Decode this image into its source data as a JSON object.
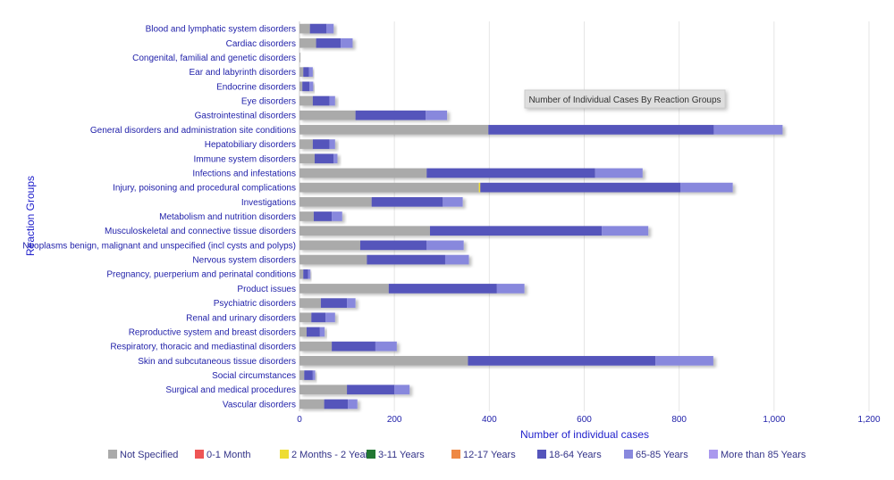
{
  "chart_data": {
    "type": "bar",
    "orientation": "horizontal",
    "stacked": true,
    "title": "Number of Individual Cases By Reaction Groups",
    "xlabel": "Number of individual cases",
    "ylabel": "Reaction Groups",
    "xlim": [
      0,
      1200
    ],
    "xticks": [
      0,
      200,
      400,
      600,
      800,
      1000,
      1200
    ],
    "xtick_labels": [
      "0",
      "200",
      "400",
      "600",
      "800",
      "1,000",
      "1,200"
    ],
    "grid": true,
    "legend_position": "bottom",
    "categories": [
      "Blood and lymphatic system disorders",
      "Cardiac disorders",
      "Congenital, familial and genetic disorders",
      "Ear and labyrinth disorders",
      "Endocrine disorders",
      "Eye disorders",
      "Gastrointestinal disorders",
      "General disorders and administration site conditions",
      "Hepatobiliary disorders",
      "Immune system disorders",
      "Infections and infestations",
      "Injury, poisoning and procedural complications",
      "Investigations",
      "Metabolism and nutrition disorders",
      "Musculoskeletal and connective tissue disorders",
      "Neoplasms benign, malignant and unspecified (incl cysts and polyps)",
      "Nervous system disorders",
      "Pregnancy, puerperium and perinatal conditions",
      "Product issues",
      "Psychiatric disorders",
      "Renal and urinary disorders",
      "Reproductive system and breast disorders",
      "Respiratory, thoracic and mediastinal disorders",
      "Skin and subcutaneous tissue disorders",
      "Social circumstances",
      "Surgical and medical procedures",
      "Vascular disorders"
    ],
    "series": [
      {
        "name": "Not Specified",
        "color": "#aaaaaa",
        "values": [
          22,
          35,
          2,
          8,
          6,
          28,
          118,
          398,
          28,
          32,
          268,
          378,
          152,
          30,
          275,
          128,
          142,
          8,
          188,
          45,
          25,
          15,
          68,
          355,
          10,
          100,
          52
        ]
      },
      {
        "name": "0-1 Month",
        "color": "#ee5555",
        "values": [
          0,
          0,
          0,
          0,
          0,
          0,
          0,
          0,
          0,
          0,
          0,
          0,
          0,
          0,
          0,
          0,
          0,
          0,
          0,
          0,
          0,
          0,
          0,
          0,
          0,
          0,
          0
        ]
      },
      {
        "name": "2 Months - 2 Years",
        "color": "#eedd33",
        "values": [
          0,
          0,
          0,
          0,
          0,
          0,
          0,
          0,
          0,
          0,
          0,
          3,
          0,
          0,
          0,
          0,
          0,
          0,
          0,
          0,
          0,
          0,
          0,
          0,
          0,
          0,
          0
        ]
      },
      {
        "name": "3-11 Years",
        "color": "#227733",
        "values": [
          0,
          0,
          0,
          0,
          0,
          0,
          0,
          0,
          0,
          0,
          0,
          0,
          0,
          0,
          0,
          0,
          0,
          0,
          0,
          0,
          0,
          0,
          0,
          0,
          0,
          0,
          0
        ]
      },
      {
        "name": "12-17 Years",
        "color": "#ee8844",
        "values": [
          0,
          0,
          0,
          0,
          0,
          0,
          0,
          0,
          0,
          0,
          0,
          0,
          0,
          0,
          0,
          0,
          0,
          0,
          0,
          0,
          0,
          0,
          0,
          0,
          0,
          0,
          0
        ]
      },
      {
        "name": "18-64 Years",
        "color": "#5555bb",
        "values": [
          35,
          52,
          0,
          12,
          15,
          35,
          148,
          475,
          35,
          40,
          355,
          422,
          150,
          38,
          362,
          140,
          165,
          10,
          228,
          55,
          30,
          28,
          92,
          395,
          18,
          100,
          50
        ]
      },
      {
        "name": "65-85 Years",
        "color": "#8888dd",
        "values": [
          15,
          25,
          0,
          8,
          8,
          12,
          45,
          145,
          12,
          8,
          100,
          110,
          42,
          22,
          98,
          78,
          50,
          5,
          58,
          18,
          20,
          10,
          45,
          122,
          5,
          32,
          20
        ]
      },
      {
        "name": "More than 85 Years",
        "color": "#aa99ee",
        "values": [
          0,
          0,
          0,
          0,
          0,
          0,
          0,
          0,
          0,
          0,
          0,
          0,
          0,
          0,
          0,
          0,
          0,
          0,
          0,
          0,
          0,
          0,
          0,
          0,
          0,
          0,
          0
        ]
      }
    ],
    "legend_labels": [
      "Not Specified",
      "0-1 Month",
      "2 Months - 2 Years",
      "3-11 Years",
      "12-17 Years",
      "18-64 Years",
      "65-85 Years",
      "More than 85 Years"
    ]
  }
}
